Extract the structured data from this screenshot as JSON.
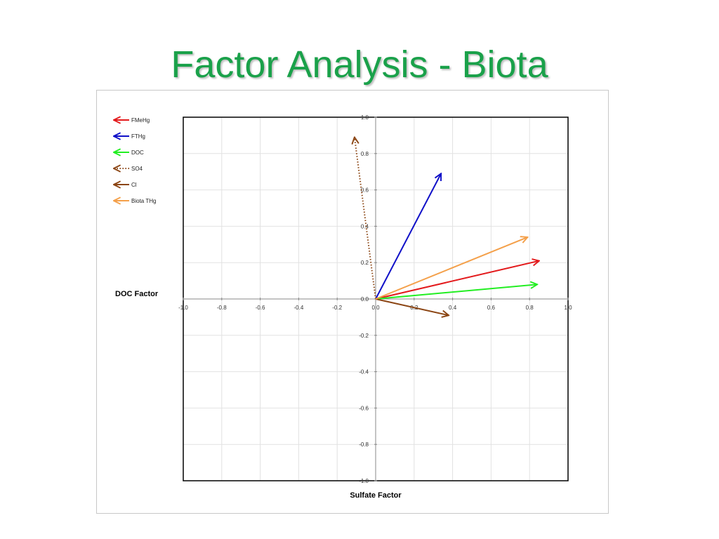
{
  "slide": {
    "title": "Factor Analysis - Biota"
  },
  "chart_data": {
    "type": "vector",
    "title": "",
    "xlabel": "Sulfate Factor",
    "ylabel": "DOC Factor",
    "xlim": [
      -1.0,
      1.0
    ],
    "ylim": [
      -1.0,
      1.0
    ],
    "xticks": [
      "-1.0",
      "-0.8",
      "-0.6",
      "-0.4",
      "-0.2",
      "0.0",
      "0.2",
      "0.4",
      "0.6",
      "0.8",
      "1.0"
    ],
    "yticks": [
      "1.0",
      "0.8",
      "0.6",
      "0.4",
      "0.2",
      "0.0",
      "-0.2",
      "-0.4",
      "-0.6",
      "-0.8",
      "-1.0"
    ],
    "grid": true,
    "legend_position": "top-left",
    "series": [
      {
        "name": "FMeHg",
        "x": [
          0,
          0.85
        ],
        "y": [
          0,
          0.21
        ],
        "color": "#e31a1c",
        "dashed": false
      },
      {
        "name": "FTHg",
        "x": [
          0,
          0.34
        ],
        "y": [
          0,
          0.69
        ],
        "color": "#1010c8",
        "dashed": false
      },
      {
        "name": "DOC",
        "x": [
          0,
          0.84
        ],
        "y": [
          0,
          0.08
        ],
        "color": "#22ee22",
        "dashed": false
      },
      {
        "name": "SO4",
        "x": [
          0,
          -0.11
        ],
        "y": [
          0,
          0.89
        ],
        "color": "#8b4513",
        "dashed": true
      },
      {
        "name": "Cl",
        "x": [
          0,
          0.38
        ],
        "y": [
          0,
          -0.09
        ],
        "color": "#8b4513",
        "dashed": false
      },
      {
        "name": "Biota THg",
        "x": [
          0,
          0.79
        ],
        "y": [
          0,
          0.34
        ],
        "color": "#f4a04a",
        "dashed": false
      }
    ]
  }
}
